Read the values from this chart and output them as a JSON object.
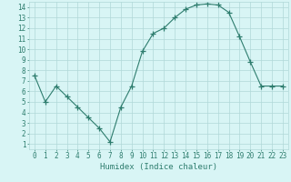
{
  "x": [
    0,
    1,
    2,
    3,
    4,
    5,
    6,
    7,
    8,
    9,
    10,
    11,
    12,
    13,
    14,
    15,
    16,
    17,
    18,
    19,
    20,
    21,
    22,
    23
  ],
  "y": [
    7.5,
    5.0,
    6.5,
    5.5,
    4.5,
    3.5,
    2.5,
    1.2,
    4.5,
    6.5,
    9.8,
    11.5,
    12.0,
    13.0,
    13.8,
    14.2,
    14.3,
    14.2,
    13.5,
    11.2,
    8.8,
    6.5,
    6.5,
    6.5
  ],
  "line_color": "#2e7d6e",
  "marker": "+",
  "marker_size": 4,
  "bg_color": "#d8f5f5",
  "grid_color": "#b0d8d8",
  "xlabel": "Humidex (Indice chaleur)",
  "xlim": [
    -0.5,
    23.5
  ],
  "ylim": [
    0.5,
    14.5
  ],
  "xtick_labels": [
    "0",
    "1",
    "2",
    "3",
    "4",
    "5",
    "6",
    "7",
    "8",
    "9",
    "10",
    "11",
    "12",
    "13",
    "14",
    "15",
    "16",
    "17",
    "18",
    "19",
    "20",
    "21",
    "22",
    "23"
  ],
  "ytick_labels": [
    "1",
    "2",
    "3",
    "4",
    "5",
    "6",
    "7",
    "8",
    "9",
    "10",
    "11",
    "12",
    "13",
    "14"
  ],
  "ytick_vals": [
    1,
    2,
    3,
    4,
    5,
    6,
    7,
    8,
    9,
    10,
    11,
    12,
    13,
    14
  ],
  "tick_fontsize": 5.5,
  "xlabel_fontsize": 6.5
}
